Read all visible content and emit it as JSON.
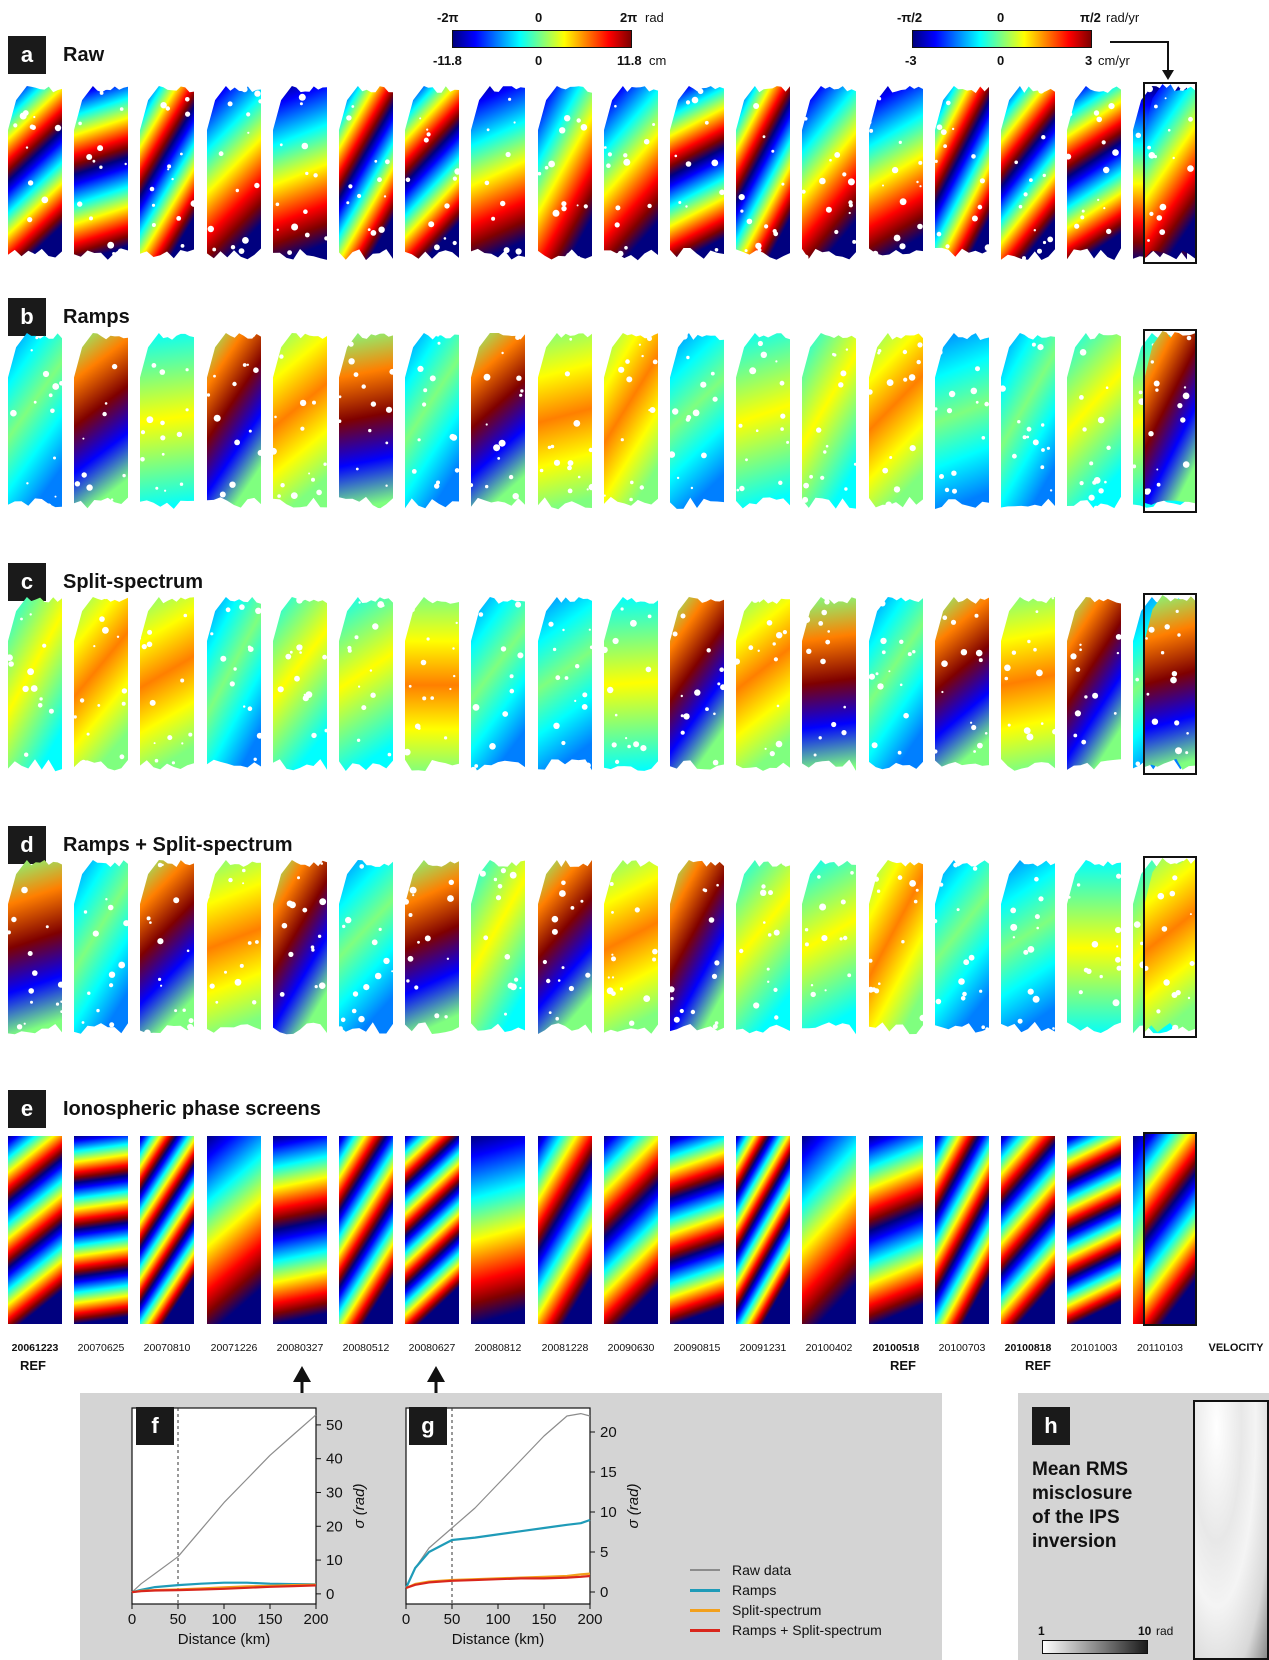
{
  "panels": {
    "a": {
      "badge": "a",
      "title": "Raw"
    },
    "b": {
      "badge": "b",
      "title": "Ramps"
    },
    "c": {
      "badge": "c",
      "title": "Split-spectrum"
    },
    "d": {
      "badge": "d",
      "title": "Ramps + Split-spectrum"
    },
    "e": {
      "badge": "e",
      "title": "Ionospheric phase screens"
    },
    "f": {
      "badge": "f"
    },
    "g": {
      "badge": "g"
    },
    "h": {
      "badge": "h",
      "title_lines": [
        "Mean RMS",
        "misclosure",
        "of the IPS",
        "inversion"
      ],
      "scale_min": "1",
      "scale_max": "10",
      "scale_unit": "rad"
    }
  },
  "colorbars": {
    "phase": {
      "top_left": "-2π",
      "top_mid": "0",
      "top_right": "2π",
      "top_unit": "rad",
      "bottom_left": "-11.8",
      "bottom_mid": "0",
      "bottom_right": "11.8",
      "bottom_unit": "cm"
    },
    "velocity": {
      "top_left": "-π/2",
      "top_mid": "0",
      "top_right": "π/2",
      "top_unit": "rad/yr",
      "bottom_left": "-3",
      "bottom_mid": "0",
      "bottom_right": "3",
      "bottom_unit": "cm/yr"
    }
  },
  "dates": [
    "20061223",
    "20070625",
    "20070810",
    "20071226",
    "20080327",
    "20080512",
    "20080627",
    "20080812",
    "20081228",
    "20090630",
    "20090815",
    "20091231",
    "20100402",
    "20100518",
    "20100703",
    "20100818",
    "20101003",
    "20110103"
  ],
  "bold_dates": [
    "20061223",
    "20100518",
    "20100818"
  ],
  "velocity_label": "VELOCITY",
  "ref_label": "REF",
  "colors": {
    "gray_panel": "#d4d4d4",
    "raw": "#8c8c8c",
    "ramps": "#1f9bb8",
    "split": "#f2a01c",
    "ramps_split": "#d9261c"
  },
  "chart_data": [
    {
      "type": "line",
      "panel": "f",
      "xlabel": "Distance (km)",
      "ylabel": "σ (rad)",
      "xlim": [
        0,
        200
      ],
      "ylim": [
        -3,
        55
      ],
      "xticks": [
        0,
        50,
        100,
        150,
        200
      ],
      "yticks": [
        0,
        10,
        20,
        30,
        40,
        50
      ],
      "vline": 50,
      "x": [
        0,
        10,
        25,
        50,
        75,
        100,
        125,
        150,
        175,
        200
      ],
      "series": [
        {
          "name": "Raw data",
          "values": [
            0.5,
            3,
            6,
            11,
            19,
            27,
            34,
            41,
            47,
            53
          ]
        },
        {
          "name": "Ramps",
          "values": [
            0.5,
            1.2,
            2.0,
            2.6,
            3.0,
            3.3,
            3.3,
            3.0,
            2.9,
            2.8
          ]
        },
        {
          "name": "Split-spectrum",
          "values": [
            0.5,
            0.9,
            1.1,
            1.3,
            1.6,
            1.9,
            2.2,
            2.4,
            2.6,
            2.7
          ]
        },
        {
          "name": "Ramps + Split-spectrum",
          "values": [
            0.5,
            0.8,
            1.0,
            1.1,
            1.3,
            1.5,
            1.8,
            2.1,
            2.3,
            2.5
          ]
        }
      ]
    },
    {
      "type": "line",
      "panel": "g",
      "xlabel": "Distance (km)",
      "ylabel": "σ (rad)",
      "xlim": [
        0,
        200
      ],
      "ylim": [
        -1.5,
        23
      ],
      "xticks": [
        0,
        50,
        100,
        150,
        200
      ],
      "yticks": [
        0,
        5,
        10,
        15,
        20
      ],
      "vline": 50,
      "x": [
        0,
        10,
        25,
        50,
        75,
        100,
        125,
        150,
        175,
        190,
        200
      ],
      "series": [
        {
          "name": "Raw data",
          "values": [
            0.5,
            3,
            5.5,
            8,
            10.5,
            13.5,
            16.5,
            19.5,
            22,
            22.3,
            22
          ],
          "unused": true
        },
        {
          "name": "Ramps",
          "values": [
            0.5,
            3,
            5,
            6.5,
            6.8,
            7.2,
            7.6,
            8.0,
            8.4,
            8.6,
            9.0
          ]
        },
        {
          "name": "Split-spectrum",
          "values": [
            0.5,
            1.0,
            1.3,
            1.5,
            1.6,
            1.7,
            1.8,
            1.9,
            2.0,
            2.2,
            2.3
          ]
        },
        {
          "name": "Ramps + Split-spectrum",
          "values": [
            0.5,
            0.9,
            1.2,
            1.4,
            1.5,
            1.6,
            1.7,
            1.7,
            1.8,
            1.9,
            2.0
          ]
        }
      ]
    }
  ],
  "legend": [
    "Raw data",
    "Ramps",
    "Split-spectrum",
    "Ramps + Split-spectrum"
  ]
}
